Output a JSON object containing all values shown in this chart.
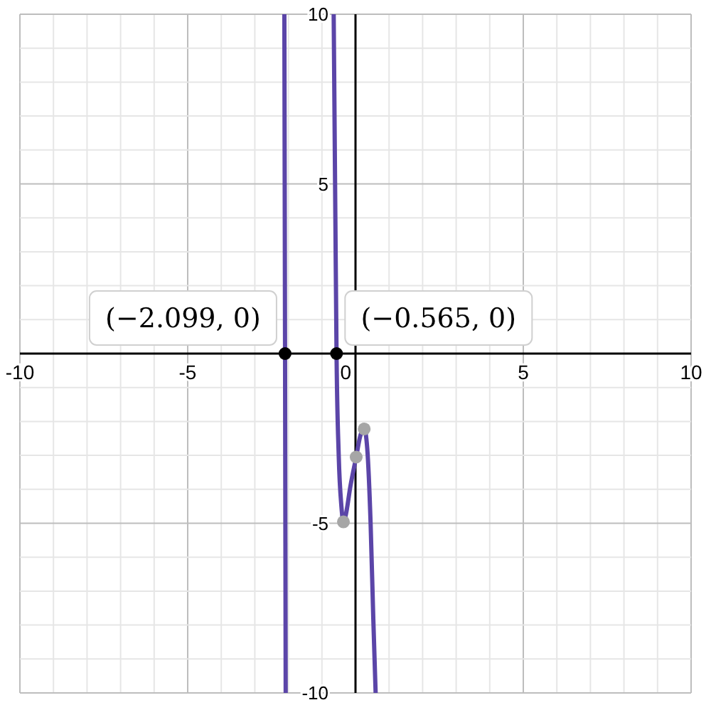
{
  "chart_data": {
    "type": "line",
    "xlim": [
      -10,
      10
    ],
    "ylim": [
      -10,
      10
    ],
    "xticks": [
      -10,
      -5,
      0,
      5,
      10
    ],
    "yticks": [
      -10,
      -5,
      5,
      10
    ],
    "grid": true,
    "series": [
      {
        "color": "#5b45a8",
        "x": [
          -2.12,
          -2.099,
          -2.08,
          null,
          -0.65,
          -0.6,
          -0.565,
          -0.5,
          -0.42,
          -0.36,
          -0.3,
          -0.15,
          0.02,
          0.15,
          0.26,
          0.35,
          0.45,
          0.53,
          0.6
        ],
        "values": [
          10,
          0,
          -10,
          null,
          10,
          4,
          0,
          -3,
          -4.5,
          -4.96,
          -4.8,
          -3.9,
          -3.05,
          -2.4,
          -2.22,
          -2.8,
          -5,
          -7.8,
          -10
        ]
      },
      {
        "type": "scatter",
        "color": "#000000",
        "x": [
          -2.099,
          -0.565
        ],
        "values": [
          0,
          0
        ]
      },
      {
        "type": "scatter",
        "color": "#a6a6a6",
        "x": [
          -0.36,
          0.02,
          0.26
        ],
        "values": [
          -4.96,
          -3.05,
          -2.22
        ]
      }
    ],
    "annotations": [
      {
        "text": "(−2.099, 0)",
        "x": -2.099,
        "y": 0
      },
      {
        "text": "(−0.565, 0)",
        "x": -0.565,
        "y": 0
      }
    ]
  }
}
